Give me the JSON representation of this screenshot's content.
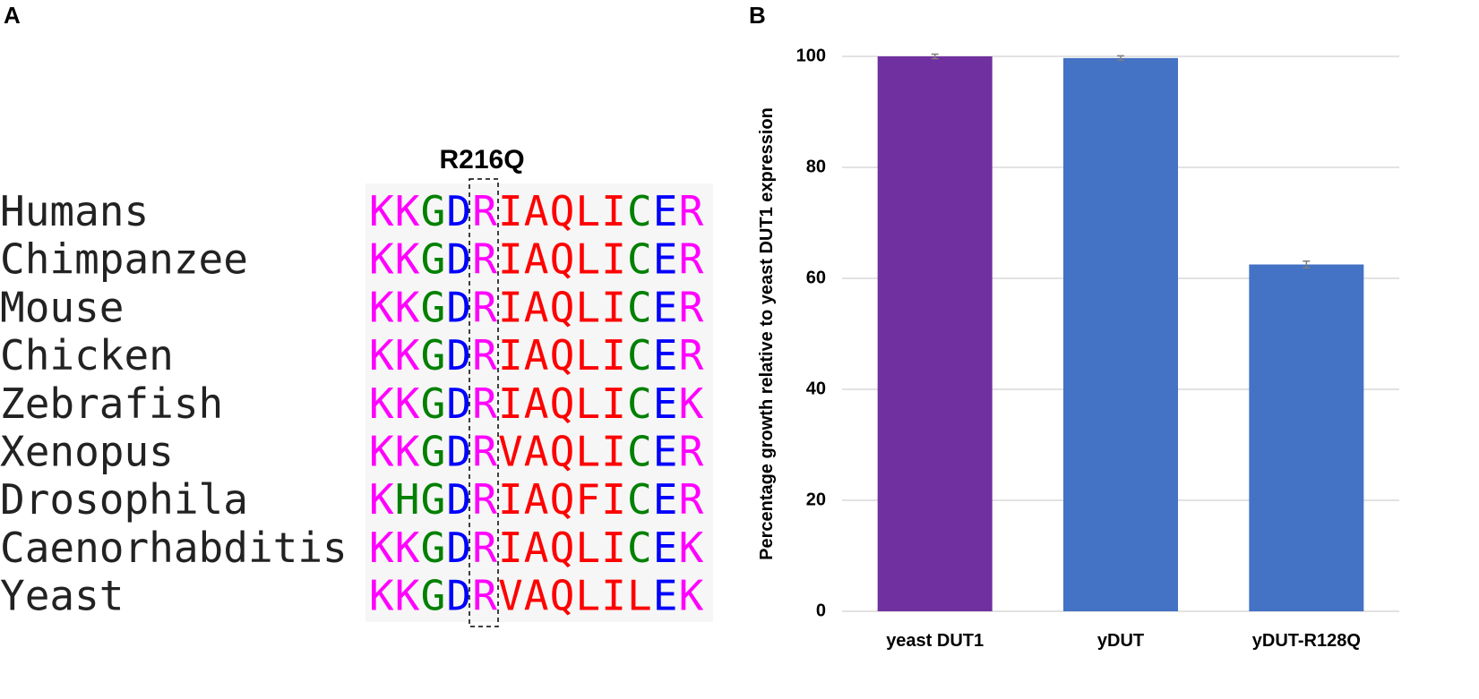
{
  "panel_labels": [
    "A",
    "B"
  ],
  "panel_a": {
    "mutation_label": "R216Q",
    "residue_colors": {
      "K": "#ff00ff",
      "R": "#ff00ff",
      "G": "#008000",
      "C": "#008000",
      "H": "#008000",
      "D": "#0000ff",
      "E": "#0000ff",
      "I": "#ff0000",
      "A": "#ff0000",
      "Q": "#ff0000",
      "L": "#ff0000",
      "V": "#ff0000",
      "F": "#ff0000"
    },
    "rows": [
      {
        "species": "Humans",
        "sequence": "KKGDRIAQLICER"
      },
      {
        "species": "Chimpanzee",
        "sequence": "KKGDRIAQLICER"
      },
      {
        "species": "Mouse",
        "sequence": "KKGDRIAQLICER"
      },
      {
        "species": "Chicken",
        "sequence": "KKGDRIAQLICER"
      },
      {
        "species": "Zebrafish",
        "sequence": "KKGDRIAQLICEK"
      },
      {
        "species": "Xenopus",
        "sequence": "KKGDRVAQLICER"
      },
      {
        "species": "Drosophila",
        "sequence": "KHGDRIAQFICER"
      },
      {
        "species": "Caenorhabditis",
        "sequence": "KKGDRIAQLICEK"
      },
      {
        "species": "Yeast",
        "sequence": "KKGDRVAQLILEK"
      }
    ]
  },
  "chart_data": {
    "type": "bar",
    "y_label": "Percentage growth relative to yeast DUT1 expression",
    "categories": [
      "yeast DUT1",
      "yDUT",
      "yDUT-R128Q"
    ],
    "values": [
      100,
      99.7,
      62.5
    ],
    "errors": [
      0.4,
      0.4,
      0.6
    ],
    "colors": [
      "#7030a0",
      "#4472c4",
      "#4472c4"
    ],
    "ylim": [
      0,
      100
    ],
    "yticks": [
      0,
      20,
      40,
      60,
      80,
      100
    ],
    "grid": true
  }
}
